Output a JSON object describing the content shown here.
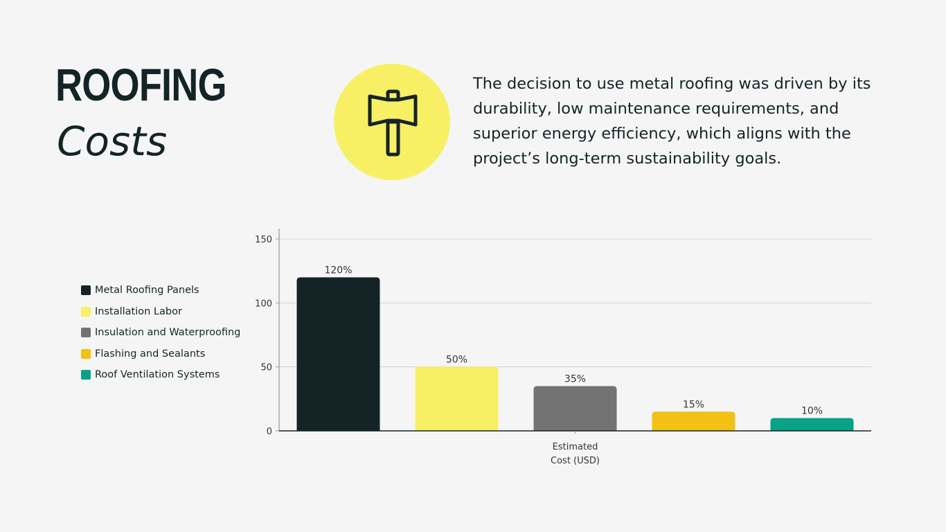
{
  "header": {
    "title_line1": "ROOFING",
    "title_line2": "Costs"
  },
  "icon": {
    "name": "hammer-icon",
    "circle_color": "#f7f064"
  },
  "description": "The decision to use metal roofing was driven by its durability, low maintenance requirements, and superior energy efficiency, which aligns with the project’s long-term sustainability goals.",
  "chart_data": {
    "type": "bar",
    "title": "",
    "xlabel": "Estimated Cost (USD)",
    "xlabel_lines": [
      "Estimated",
      "Cost (USD)"
    ],
    "ylabel": "",
    "ylim": [
      0,
      150
    ],
    "yticks": [
      0,
      50,
      100,
      150
    ],
    "grid": true,
    "legend_position": "left",
    "series": [
      {
        "name": "Metal Roofing Panels",
        "value": 120,
        "label": "120%",
        "color": "#142426"
      },
      {
        "name": "Installation Labor",
        "value": 50,
        "label": "50%",
        "color": "#f7f064"
      },
      {
        "name": "Insulation and Waterproofing",
        "value": 35,
        "label": "35%",
        "color": "#737373"
      },
      {
        "name": "Flashing and Sealants",
        "value": 15,
        "label": "15%",
        "color": "#f2c114"
      },
      {
        "name": "Roof Ventilation Systems",
        "value": 10,
        "label": "10%",
        "color": "#0aa287"
      }
    ]
  }
}
